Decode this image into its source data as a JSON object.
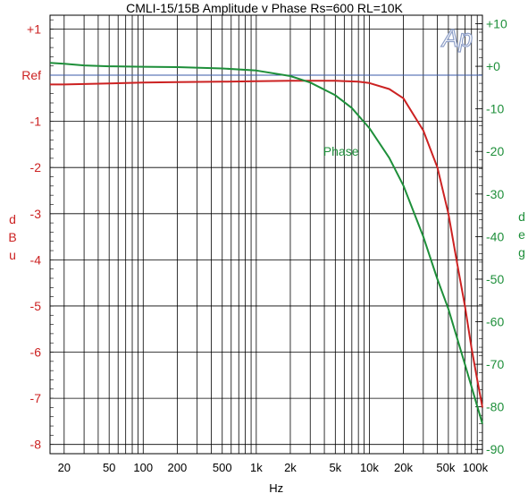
{
  "chart_data": {
    "type": "line",
    "title": "CMLI-15/15B   Amplitude v Phase  Rs=600 RL=10K",
    "xlabel": "Hz",
    "ylabel_left": [
      "d",
      "B",
      "u"
    ],
    "ylabel_right": [
      "d",
      "e",
      "g"
    ],
    "x_scale": "log",
    "xlim": [
      15,
      100000
    ],
    "ylim_left": [
      -8.2,
      1.3
    ],
    "ylim_right": [
      -91,
      12
    ],
    "grid": true,
    "logo": "Ap",
    "colors": {
      "amplitude": "#cc2222",
      "phase": "#1e8f3a",
      "ref_line": "#3a5aa8",
      "grid": "#000000"
    },
    "x_ticks": [
      {
        "value": 20,
        "label": "20"
      },
      {
        "value": 50,
        "label": "50"
      },
      {
        "value": 100,
        "label": "100"
      },
      {
        "value": 200,
        "label": "200"
      },
      {
        "value": 500,
        "label": "500"
      },
      {
        "value": 1000,
        "label": "1k"
      },
      {
        "value": 2000,
        "label": "2k"
      },
      {
        "value": 5000,
        "label": "5k"
      },
      {
        "value": 10000,
        "label": "10k"
      },
      {
        "value": 20000,
        "label": "20k"
      },
      {
        "value": 50000,
        "label": "50k"
      },
      {
        "value": 100000,
        "label": "100k"
      }
    ],
    "y_ticks_left": [
      {
        "value": 1,
        "label": "+1"
      },
      {
        "value": 0,
        "label": "Ref"
      },
      {
        "value": -1,
        "label": "-1"
      },
      {
        "value": -2,
        "label": "-2"
      },
      {
        "value": -3,
        "label": "-3"
      },
      {
        "value": -4,
        "label": "-4"
      },
      {
        "value": -5,
        "label": "-5"
      },
      {
        "value": -6,
        "label": "-6"
      },
      {
        "value": -7,
        "label": "-7"
      },
      {
        "value": -8,
        "label": "-8"
      }
    ],
    "y_ticks_right": [
      {
        "value": 10,
        "label": "+10"
      },
      {
        "value": 0,
        "label": "+0"
      },
      {
        "value": -10,
        "label": "-10"
      },
      {
        "value": -20,
        "label": "-20"
      },
      {
        "value": -30,
        "label": "-30"
      },
      {
        "value": -40,
        "label": "-40"
      },
      {
        "value": -50,
        "label": "-50"
      },
      {
        "value": -60,
        "label": "-60"
      },
      {
        "value": -70,
        "label": "-70"
      },
      {
        "value": -80,
        "label": "-80"
      },
      {
        "value": -90,
        "label": "-90"
      }
    ],
    "ref_value": 0,
    "series": [
      {
        "axis": "left",
        "color": "#cc2222",
        "x": [
          15,
          20,
          50,
          100,
          200,
          500,
          1000,
          2000,
          5000,
          8000,
          10000,
          15000,
          20000,
          30000,
          40000,
          50000,
          60000,
          70000,
          80000,
          90000,
          100000
        ],
        "y": [
          -0.2,
          -0.2,
          -0.18,
          -0.16,
          -0.15,
          -0.14,
          -0.13,
          -0.12,
          -0.12,
          -0.14,
          -0.17,
          -0.3,
          -0.5,
          -1.2,
          -2.0,
          -3.0,
          -4.1,
          -5.0,
          -5.9,
          -6.6,
          -7.2
        ]
      },
      {
        "name": "Phase",
        "axis": "right",
        "color": "#1e8f3a",
        "x": [
          15,
          20,
          30,
          50,
          100,
          200,
          500,
          1000,
          2000,
          3000,
          5000,
          7000,
          10000,
          15000,
          20000,
          30000,
          40000,
          50000,
          70000,
          100000
        ],
        "y": [
          0.8,
          0.6,
          0.2,
          0,
          -0.1,
          -0.2,
          -0.5,
          -1.0,
          -2.3,
          -3.8,
          -6.8,
          -9.8,
          -14.5,
          -21.5,
          -28,
          -40,
          -50,
          -57,
          -70,
          -84
        ]
      }
    ],
    "annotations": [
      {
        "text": "Phase",
        "x": 9000,
        "y_right": -20,
        "color": "#1e8f3a"
      }
    ]
  }
}
